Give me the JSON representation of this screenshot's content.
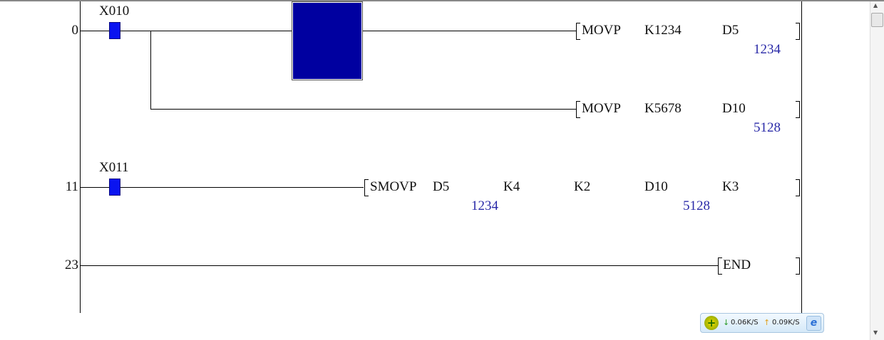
{
  "rungs": [
    {
      "step": "0",
      "contact": "X010",
      "instructions": [
        {
          "op": "MOVP",
          "operands": [
            "K1234",
            "D5"
          ],
          "monitor": [
            "",
            "1234"
          ]
        },
        {
          "op": "MOVP",
          "operands": [
            "K5678",
            "D10"
          ],
          "monitor": [
            "",
            "5128"
          ]
        }
      ]
    },
    {
      "step": "11",
      "contact": "X011",
      "instructions": [
        {
          "op": "SMOVP",
          "operands": [
            "D5",
            "K4",
            "K2",
            "D10",
            "K3"
          ],
          "monitor": [
            "1234",
            "",
            "",
            "5128",
            ""
          ]
        }
      ]
    },
    {
      "step": "23",
      "instructions": [
        {
          "op": "END"
        }
      ]
    }
  ],
  "tray": {
    "down_icon": "arrow-down-icon",
    "down": "0.06K/S",
    "up_icon": "arrow-up-icon",
    "up": "0.09K/S"
  },
  "colors": {
    "contact": "#0a14f0",
    "cursor": "#0000a0",
    "monitor": "#2a2aa8"
  }
}
